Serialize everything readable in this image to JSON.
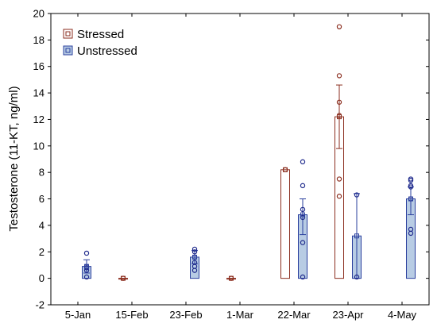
{
  "chart_data": {
    "type": "bar",
    "ylabel": "Testosterone (11-KT, ng/ml)",
    "xlabel": "",
    "title": "",
    "ylim": [
      -2,
      20
    ],
    "yticks": [
      -2,
      0,
      2,
      4,
      6,
      8,
      10,
      12,
      14,
      16,
      18,
      20
    ],
    "grid": false,
    "legend_position": "top-left",
    "categories": [
      "5-Jan",
      "15-Feb",
      "23-Feb",
      "1-Mar",
      "22-Mar",
      "23-Apr",
      "4-May"
    ],
    "colors": {
      "stressed_edge": "#8B2E1F",
      "stressed_fill": "#ffffff",
      "unstressed_edge": "#2A3F9E",
      "unstressed_fill": "#B8CCE4",
      "points": "#1F2A8C"
    },
    "series": [
      {
        "name": "Stressed",
        "values": [
          null,
          0.0,
          null,
          0.0,
          8.2,
          12.2,
          null
        ],
        "error_low": [
          null,
          null,
          null,
          null,
          null,
          9.8,
          null
        ],
        "error_high": [
          null,
          null,
          null,
          null,
          null,
          14.6,
          null
        ],
        "points": [
          [],
          [
            0.0
          ],
          [],
          [
            0.0
          ],
          [
            8.2
          ],
          [
            19.0,
            15.3,
            13.3,
            12.3,
            7.5,
            6.2
          ],
          []
        ]
      },
      {
        "name": "Unstressed",
        "values": [
          0.9,
          null,
          1.6,
          null,
          4.8,
          3.2,
          6.0
        ],
        "error_low": [
          0.4,
          null,
          1.1,
          null,
          3.3,
          0.0,
          4.8
        ],
        "error_high": [
          1.4,
          null,
          2.1,
          null,
          6.0,
          6.4,
          6.9
        ],
        "points": [
          [
            1.9,
            0.9,
            0.8,
            0.6,
            0.1
          ],
          [],
          [
            2.2,
            2.0,
            1.6,
            1.2,
            0.9,
            0.6
          ],
          [],
          [
            8.8,
            7.0,
            5.2,
            4.6,
            2.7,
            0.1
          ],
          [
            6.3,
            0.1
          ],
          [
            7.5,
            7.4,
            7.0,
            6.9,
            6.0,
            3.7,
            3.4
          ]
        ]
      }
    ]
  }
}
